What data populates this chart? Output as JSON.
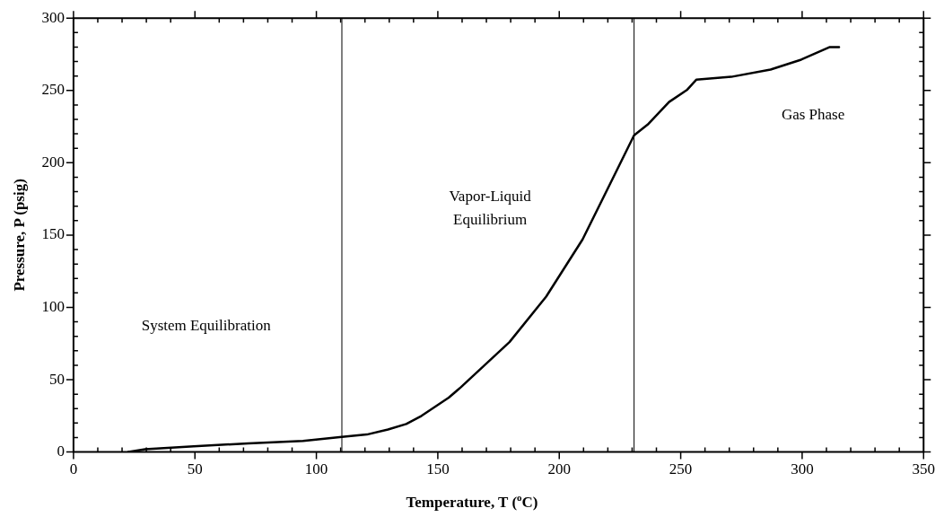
{
  "chart_data": {
    "type": "line",
    "xlabel": "Temperature, T ($^{o}$C)",
    "ylabel": "Pressure, P (psig)",
    "xlim": [
      0,
      350
    ],
    "ylim": [
      0,
      300
    ],
    "xticks": [
      0,
      {
        "value": 10,
        "label": null
      },
      {
        "value": 20,
        "label": null
      },
      {
        "value": 30,
        "label": null
      },
      {
        "value": 40,
        "label": null
      },
      50,
      {
        "value": 60,
        "label": null
      },
      {
        "value": 70,
        "label": null
      },
      {
        "value": 80,
        "label": null
      },
      {
        "value": 90,
        "label": null
      },
      100,
      {
        "value": 110,
        "label": null
      },
      {
        "value": 120,
        "label": null
      },
      {
        "value": 130,
        "label": null
      },
      {
        "value": 140,
        "label": null
      },
      150,
      {
        "value": 160,
        "label": null
      },
      {
        "value": 170,
        "label": null
      },
      {
        "value": 180,
        "label": null
      },
      {
        "value": 190,
        "label": null
      },
      200,
      {
        "value": 210,
        "label": null
      },
      {
        "value": 220,
        "label": null
      },
      {
        "value": 230,
        "label": null
      },
      {
        "value": 240,
        "label": null
      },
      250,
      {
        "value": 260,
        "label": null
      },
      {
        "value": 270,
        "label": null
      },
      {
        "value": 280,
        "label": null
      },
      {
        "value": 290,
        "label": null
      },
      300,
      {
        "value": 310,
        "label": null
      },
      {
        "value": 320,
        "label": null
      },
      {
        "value": 330,
        "label": null
      },
      {
        "value": 340,
        "label": null
      },
      350
    ],
    "yticks": [
      0,
      {
        "value": 10,
        "label": null
      },
      {
        "value": 20,
        "label": null
      },
      {
        "value": 30,
        "label": null
      },
      {
        "value": 40,
        "label": null
      },
      50,
      {
        "value": 60,
        "label": null
      },
      {
        "value": 70,
        "label": null
      },
      {
        "value": 80,
        "label": null
      },
      {
        "value": 90,
        "label": null
      },
      100,
      {
        "value": 110,
        "label": null
      },
      {
        "value": 120,
        "label": null
      },
      {
        "value": 130,
        "label": null
      },
      {
        "value": 140,
        "label": null
      },
      150,
      {
        "value": 160,
        "label": null
      },
      {
        "value": 170,
        "label": null
      },
      {
        "value": 180,
        "label": null
      },
      {
        "value": 190,
        "label": null
      },
      200,
      {
        "value": 210,
        "label": null
      },
      {
        "value": 220,
        "label": null
      },
      {
        "value": 230,
        "label": null
      },
      {
        "value": 240,
        "label": null
      },
      250,
      {
        "value": 260,
        "label": null
      },
      {
        "value": 270,
        "label": null
      },
      {
        "value": 280,
        "label": null
      },
      {
        "value": 290,
        "label": null
      },
      300
    ],
    "grid": false,
    "legend": false,
    "marker": "none",
    "line_style": "solid",
    "series": [
      {
        "color": "#000000",
        "x": [
          22.6,
          29.5,
          49.5,
          72,
          94.5,
          110.5,
          120.8,
          129.5,
          137,
          143.3,
          154.5,
          159.5,
          179.5,
          194.6,
          209.6,
          222,
          230.8,
          236.4,
          245.2,
          252.7,
          256.4,
          270.8,
          287,
          299.6,
          311.4,
          315.2
        ],
        "values": [
          0,
          1.9,
          4,
          6,
          7.7,
          10.4,
          12.1,
          15.6,
          19.4,
          25,
          37.6,
          44.8,
          76,
          107.4,
          147,
          189,
          219,
          226.4,
          242,
          250.5,
          257.4,
          259.4,
          264.4,
          271.3,
          280,
          280
        ]
      }
    ],
    "ref_lines": [
      {
        "axis": "x",
        "value": 110.5,
        "color": "#000000"
      },
      {
        "axis": "x",
        "value": 230.8,
        "color": "#000000"
      }
    ],
    "annotations": [
      "System Equilibration",
      "Vapor-Liquid\nEquilibrium",
      "Gas Phase"
    ]
  }
}
